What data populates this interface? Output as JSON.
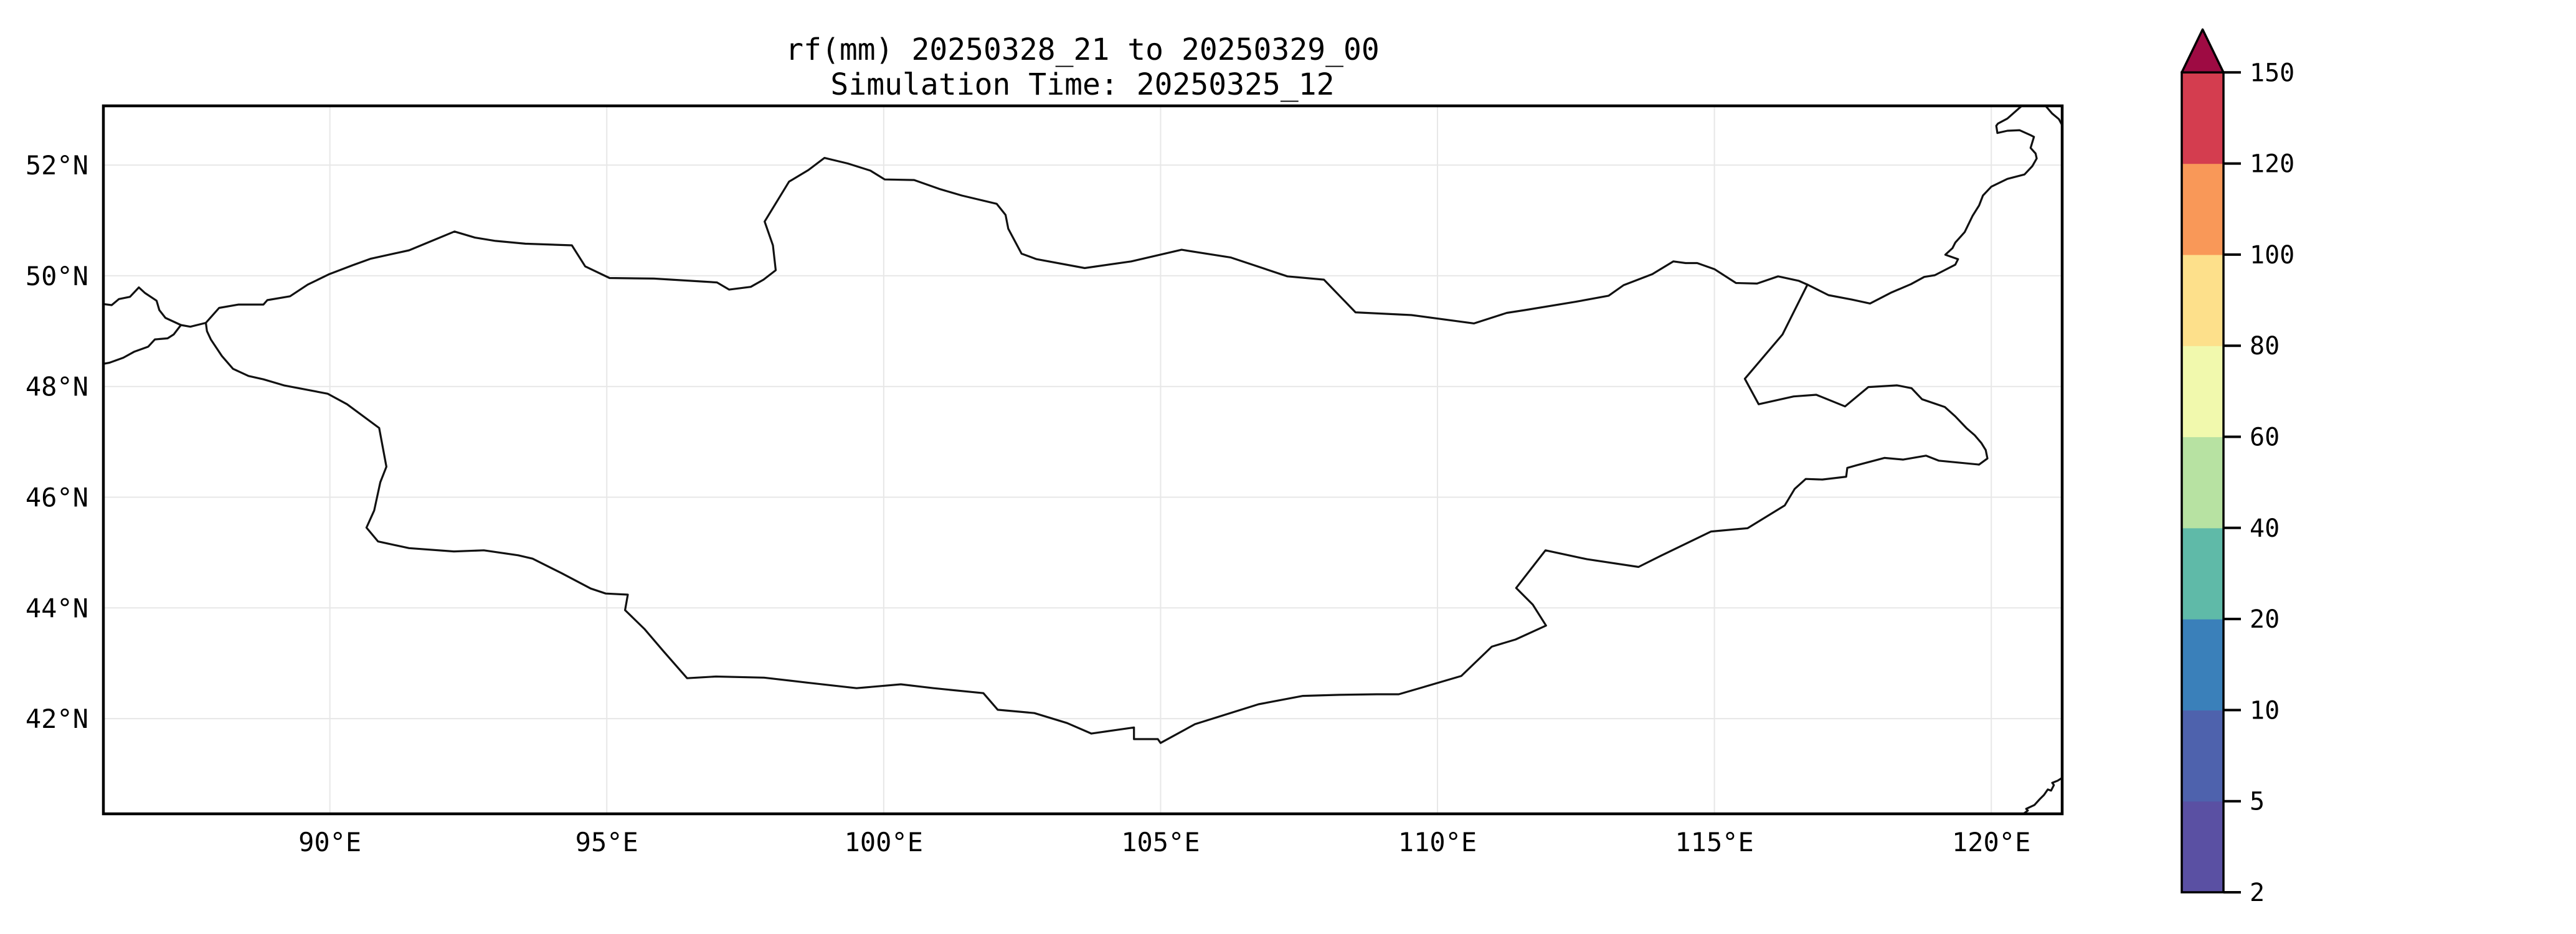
{
  "title": {
    "line1": "rf(mm) 20250328_21 to 20250329_00",
    "line2": "Simulation Time: 20250325_12"
  },
  "map": {
    "extent": {
      "lon_min": 85.91,
      "lon_max": 121.28,
      "lat_min": 40.28,
      "lat_max": 53.07
    },
    "grid_color": "#e7e7e7",
    "border_color": "#111111",
    "frame_color": "#000000",
    "lon_ticks": [
      {
        "lon": 90,
        "label": "90°E"
      },
      {
        "lon": 95,
        "label": "95°E"
      },
      {
        "lon": 100,
        "label": "100°E"
      },
      {
        "lon": 105,
        "label": "105°E"
      },
      {
        "lon": 110,
        "label": "110°E"
      },
      {
        "lon": 115,
        "label": "115°E"
      },
      {
        "lon": 120,
        "label": "120°E"
      }
    ],
    "lat_ticks": [
      {
        "lat": 52,
        "label": "52°N"
      },
      {
        "lat": 50,
        "label": "50°N"
      },
      {
        "lat": 48,
        "label": "48°N"
      },
      {
        "lat": 46,
        "label": "46°N"
      },
      {
        "lat": 44,
        "label": "44°N"
      },
      {
        "lat": 42,
        "label": "42°N"
      }
    ],
    "borders": {
      "mongolia": [
        [
          87.76,
          49.15
        ],
        [
          88.0,
          49.42
        ],
        [
          88.35,
          49.48
        ],
        [
          88.8,
          49.48
        ],
        [
          88.87,
          49.56
        ],
        [
          89.28,
          49.63
        ],
        [
          89.6,
          49.84
        ],
        [
          89.99,
          50.03
        ],
        [
          90.41,
          50.19
        ],
        [
          90.74,
          50.31
        ],
        [
          91.43,
          50.46
        ],
        [
          92.25,
          50.8
        ],
        [
          92.62,
          50.69
        ],
        [
          92.99,
          50.63
        ],
        [
          93.53,
          50.58
        ],
        [
          94.37,
          50.55
        ],
        [
          94.61,
          50.17
        ],
        [
          95.05,
          49.96
        ],
        [
          95.85,
          49.95
        ],
        [
          96.99,
          49.88
        ],
        [
          97.21,
          49.75
        ],
        [
          97.6,
          49.8
        ],
        [
          97.83,
          49.93
        ],
        [
          98.05,
          50.1
        ],
        [
          98.0,
          50.55
        ],
        [
          97.85,
          50.98
        ],
        [
          98.29,
          51.7
        ],
        [
          98.64,
          51.91
        ],
        [
          98.93,
          52.13
        ],
        [
          99.35,
          52.03
        ],
        [
          99.76,
          51.9
        ],
        [
          100.02,
          51.74
        ],
        [
          100.55,
          51.73
        ],
        [
          101.0,
          51.57
        ],
        [
          101.41,
          51.45
        ],
        [
          102.04,
          51.3
        ],
        [
          102.2,
          51.1
        ],
        [
          102.25,
          50.85
        ],
        [
          102.49,
          50.4
        ],
        [
          102.76,
          50.3
        ],
        [
          103.63,
          50.14
        ],
        [
          104.47,
          50.26
        ],
        [
          105.38,
          50.47
        ],
        [
          106.27,
          50.33
        ],
        [
          107.29,
          49.99
        ],
        [
          107.95,
          49.93
        ],
        [
          108.52,
          49.34
        ],
        [
          109.53,
          49.29
        ],
        [
          110.66,
          49.14
        ],
        [
          111.25,
          49.33
        ],
        [
          111.58,
          49.38
        ],
        [
          112.49,
          49.53
        ],
        [
          113.09,
          49.64
        ],
        [
          113.36,
          49.83
        ],
        [
          113.88,
          50.03
        ],
        [
          114.26,
          50.26
        ],
        [
          114.48,
          50.23
        ],
        [
          114.69,
          50.23
        ],
        [
          115.0,
          50.12
        ],
        [
          115.39,
          49.87
        ],
        [
          115.77,
          49.86
        ],
        [
          116.15,
          49.99
        ],
        [
          116.52,
          49.91
        ],
        [
          116.68,
          49.84
        ],
        [
          116.23,
          48.94
        ],
        [
          115.55,
          48.14
        ],
        [
          115.8,
          47.68
        ],
        [
          116.43,
          47.82
        ],
        [
          116.84,
          47.85
        ],
        [
          117.36,
          47.64
        ],
        [
          117.78,
          47.99
        ],
        [
          118.3,
          48.02
        ],
        [
          118.56,
          47.97
        ],
        [
          118.75,
          47.77
        ],
        [
          119.16,
          47.63
        ],
        [
          119.35,
          47.46
        ],
        [
          119.55,
          47.25
        ],
        [
          119.7,
          47.12
        ],
        [
          119.82,
          46.98
        ],
        [
          119.9,
          46.85
        ],
        [
          119.93,
          46.7
        ],
        [
          119.78,
          46.59
        ],
        [
          119.05,
          46.66
        ],
        [
          118.82,
          46.75
        ],
        [
          118.41,
          46.68
        ],
        [
          118.07,
          46.71
        ],
        [
          117.58,
          46.58
        ],
        [
          117.4,
          46.53
        ],
        [
          117.38,
          46.37
        ],
        [
          116.95,
          46.32
        ],
        [
          116.65,
          46.33
        ],
        [
          116.45,
          46.15
        ],
        [
          116.27,
          45.85
        ],
        [
          115.6,
          45.44
        ],
        [
          114.94,
          45.38
        ],
        [
          114.03,
          44.94
        ],
        [
          113.63,
          44.74
        ],
        [
          112.7,
          44.88
        ],
        [
          111.95,
          45.04
        ],
        [
          111.42,
          44.36
        ],
        [
          111.72,
          44.06
        ],
        [
          111.96,
          43.68
        ],
        [
          111.41,
          43.43
        ],
        [
          110.98,
          43.3
        ],
        [
          110.43,
          42.77
        ],
        [
          109.75,
          42.57
        ],
        [
          109.3,
          42.44
        ],
        [
          108.9,
          42.44
        ],
        [
          108.23,
          42.43
        ],
        [
          107.57,
          42.41
        ],
        [
          106.77,
          42.26
        ],
        [
          105.62,
          41.9
        ],
        [
          105.0,
          41.56
        ],
        [
          104.95,
          41.63
        ],
        [
          104.52,
          41.63
        ],
        [
          104.52,
          41.84
        ],
        [
          103.75,
          41.73
        ],
        [
          103.31,
          41.92
        ],
        [
          102.72,
          42.1
        ],
        [
          102.06,
          42.16
        ],
        [
          101.8,
          42.46
        ],
        [
          100.9,
          42.55
        ],
        [
          100.31,
          42.62
        ],
        [
          99.51,
          42.55
        ],
        [
          98.62,
          42.65
        ],
        [
          97.84,
          42.74
        ],
        [
          96.97,
          42.76
        ],
        [
          96.45,
          42.73
        ],
        [
          96.02,
          43.22
        ],
        [
          95.68,
          43.62
        ],
        [
          95.33,
          43.96
        ],
        [
          95.38,
          44.24
        ],
        [
          94.98,
          44.26
        ],
        [
          94.71,
          44.35
        ],
        [
          94.18,
          44.63
        ],
        [
          93.66,
          44.89
        ],
        [
          93.4,
          44.95
        ],
        [
          92.78,
          45.04
        ],
        [
          92.24,
          45.02
        ],
        [
          91.43,
          45.08
        ],
        [
          90.87,
          45.2
        ],
        [
          90.66,
          45.45
        ],
        [
          90.8,
          45.76
        ],
        [
          90.91,
          46.27
        ],
        [
          91.02,
          46.55
        ],
        [
          90.89,
          47.25
        ],
        [
          90.31,
          47.68
        ],
        [
          89.96,
          47.87
        ],
        [
          89.17,
          48.02
        ],
        [
          88.8,
          48.13
        ],
        [
          88.53,
          48.19
        ],
        [
          88.25,
          48.32
        ],
        [
          88.05,
          48.55
        ],
        [
          87.95,
          48.7
        ],
        [
          87.85,
          48.85
        ],
        [
          87.78,
          49.0
        ],
        [
          87.76,
          49.15
        ]
      ],
      "west_tripoint_link": [
        [
          87.76,
          49.15
        ],
        [
          87.48,
          49.08
        ],
        [
          87.31,
          49.11
        ]
      ],
      "kazakh_russia": [
        [
          87.31,
          49.11
        ],
        [
          87.03,
          49.24
        ],
        [
          86.92,
          49.38
        ],
        [
          86.87,
          49.55
        ],
        [
          86.66,
          49.69
        ],
        [
          86.55,
          49.79
        ],
        [
          86.39,
          49.62
        ],
        [
          86.19,
          49.58
        ],
        [
          86.06,
          49.47
        ],
        [
          85.91,
          49.49
        ]
      ],
      "kazakh_china": [
        [
          87.31,
          49.11
        ],
        [
          87.18,
          48.94
        ],
        [
          87.07,
          48.87
        ],
        [
          86.84,
          48.85
        ],
        [
          86.72,
          48.72
        ],
        [
          86.47,
          48.63
        ],
        [
          86.27,
          48.52
        ],
        [
          86.02,
          48.43
        ],
        [
          85.91,
          48.41
        ]
      ],
      "russia_china_argun": [
        [
          116.68,
          49.84
        ],
        [
          117.06,
          49.65
        ],
        [
          117.48,
          49.57
        ],
        [
          117.81,
          49.5
        ],
        [
          118.2,
          49.7
        ],
        [
          118.55,
          49.85
        ],
        [
          118.79,
          49.98
        ],
        [
          118.98,
          50.01
        ],
        [
          119.35,
          50.2
        ],
        [
          119.4,
          50.3
        ],
        [
          119.17,
          50.38
        ],
        [
          119.3,
          50.5
        ],
        [
          119.35,
          50.6
        ],
        [
          119.52,
          50.79
        ],
        [
          119.66,
          51.08
        ],
        [
          119.78,
          51.27
        ],
        [
          119.85,
          51.45
        ],
        [
          120.0,
          51.61
        ],
        [
          120.29,
          51.75
        ],
        [
          120.6,
          51.83
        ],
        [
          120.74,
          51.98
        ],
        [
          120.82,
          52.12
        ],
        [
          120.8,
          52.21
        ],
        [
          120.71,
          52.31
        ],
        [
          120.77,
          52.51
        ],
        [
          120.71,
          52.54
        ],
        [
          120.51,
          52.63
        ],
        [
          120.29,
          52.62
        ],
        [
          120.11,
          52.58
        ],
        [
          120.09,
          52.71
        ],
        [
          120.12,
          52.75
        ],
        [
          120.29,
          52.84
        ],
        [
          120.55,
          53.07
        ]
      ],
      "corner_ne": [
        [
          120.98,
          53.07
        ],
        [
          121.1,
          52.93
        ],
        [
          121.22,
          52.83
        ],
        [
          121.28,
          52.72
        ]
      ],
      "coast_se": [
        [
          120.58,
          40.28
        ],
        [
          120.66,
          40.34
        ],
        [
          120.63,
          40.37
        ],
        [
          120.78,
          40.44
        ],
        [
          120.88,
          40.55
        ],
        [
          120.95,
          40.62
        ],
        [
          121.02,
          40.72
        ],
        [
          121.08,
          40.7
        ],
        [
          121.13,
          40.8
        ],
        [
          121.1,
          40.84
        ],
        [
          121.2,
          40.88
        ],
        [
          121.28,
          40.93
        ]
      ]
    }
  },
  "colorbar": {
    "levels": [
      2,
      5,
      10,
      20,
      40,
      60,
      80,
      100,
      120,
      150
    ],
    "tick_labels": [
      "2",
      "5",
      "10",
      "20",
      "40",
      "60",
      "80",
      "100",
      "120",
      "150"
    ],
    "segment_colors": [
      "#5a50a3",
      "#4e62ad",
      "#3a80ba",
      "#5fbaa8",
      "#b7e2a2",
      "#f1f9ad",
      "#fde08b",
      "#f99858",
      "#d43d4f"
    ],
    "over_color": "#9e0b43",
    "outline_color": "#000000"
  }
}
